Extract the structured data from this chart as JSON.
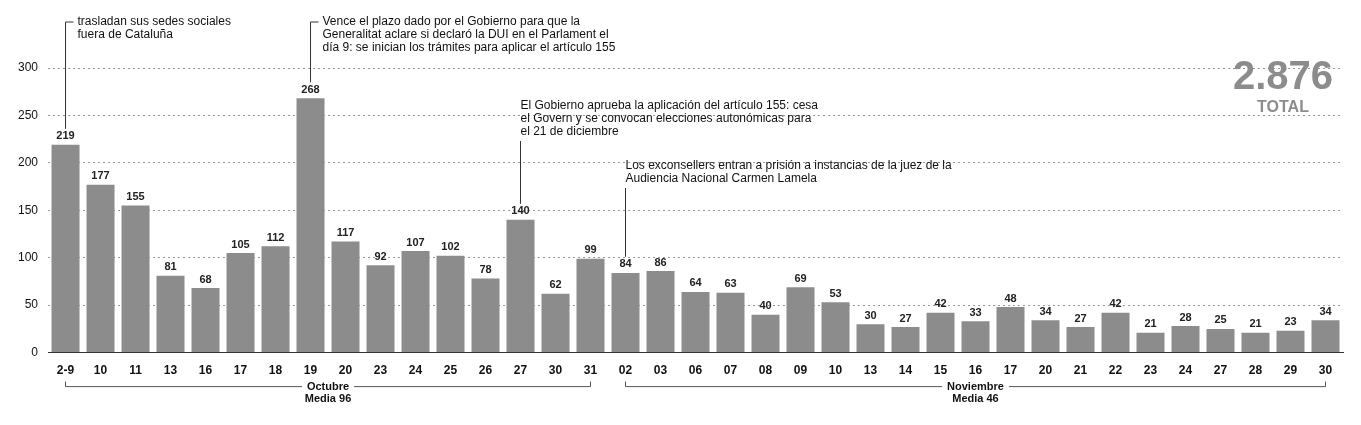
{
  "chart_data": {
    "type": "bar",
    "categories": [
      "2-9",
      "10",
      "11",
      "13",
      "16",
      "17",
      "18",
      "19",
      "20",
      "23",
      "24",
      "25",
      "26",
      "27",
      "30",
      "31",
      "02",
      "03",
      "06",
      "07",
      "08",
      "09",
      "10",
      "13",
      "14",
      "15",
      "16",
      "17",
      "20",
      "21",
      "22",
      "23",
      "24",
      "27",
      "28",
      "29",
      "30"
    ],
    "values": [
      219,
      177,
      155,
      81,
      68,
      105,
      112,
      268,
      117,
      92,
      107,
      102,
      78,
      140,
      62,
      99,
      84,
      86,
      64,
      63,
      40,
      69,
      53,
      30,
      27,
      42,
      33,
      48,
      34,
      27,
      42,
      21,
      28,
      25,
      21,
      23,
      34
    ],
    "color": "#8c8c8c",
    "ylim": [
      0,
      300
    ],
    "yticks": [
      0,
      50,
      100,
      150,
      200,
      250,
      300
    ],
    "grid": "y",
    "data_labels": true,
    "annotations": [
      "trasladan sus sedes sociales fuera de Cataluña",
      "Vence el plazo dado por el Gobierno para que la Generalitat aclare si declaró la DUI en el Parlament el día 9: se inician los trámites para aplicar el artículo 155",
      "El Gobierno aprueba la aplicación del artículo 155: cesa el Govern y se convocan elecciones autonómicas para el 21 de diciembre",
      "Los exconsellers entran a prisión a instancias de la juez de la Audiencia Nacional Carmen Lamela",
      "Octubre",
      "Media 96",
      "Noviembre",
      "Media 46",
      "2.876",
      "TOTAL"
    ]
  }
}
